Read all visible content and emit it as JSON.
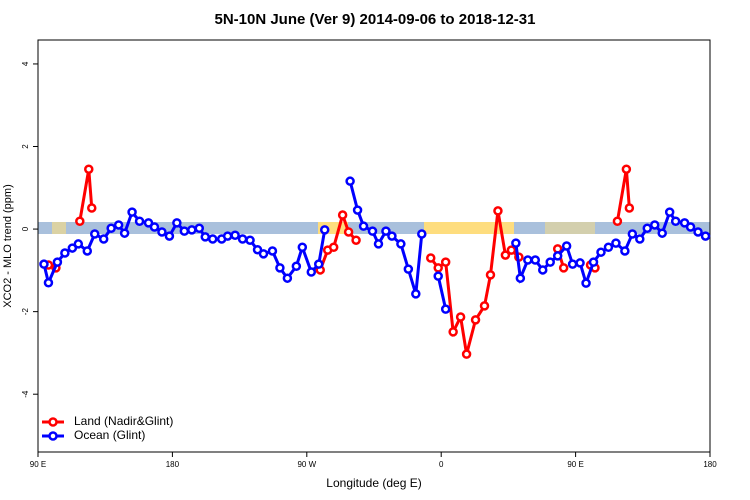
{
  "chart_data": {
    "type": "line",
    "title": "5N-10N June (Ver 9)   2014-09-06 to 2018-12-31",
    "x_label": "Longitude (deg E)",
    "y_label": "XCO2 - MLO trend (ppm)",
    "xlim": [
      90,
      540
    ],
    "ylim": [
      -5.4,
      4.58
    ],
    "xticks": [
      {
        "value": 90,
        "label": "90 E"
      },
      180,
      {
        "value": 270,
        "label": "90 W"
      },
      {
        "value": 360,
        "label": "0"
      },
      {
        "value": 450,
        "label": "90 E"
      },
      {
        "value": 540,
        "label": "180"
      }
    ],
    "yticks": [
      -4,
      -2,
      0,
      2,
      4
    ],
    "legend": "bottom-left",
    "series": [
      {
        "name": "Land (Nadir&Glint)",
        "color": "#ff0000",
        "x": [
          97,
          102,
          null,
          118,
          124,
          126,
          null,
          279,
          284,
          288,
          294,
          298,
          303,
          null,
          353,
          358,
          363,
          368,
          373,
          377,
          383,
          389,
          393,
          398,
          403,
          407,
          412,
          null,
          438,
          442,
          null,
          460,
          463,
          null,
          478,
          484,
          486
        ],
        "values": [
          -0.87,
          -0.94,
          null,
          0.19,
          1.45,
          0.51,
          null,
          -0.99,
          -0.51,
          -0.44,
          0.34,
          -0.07,
          -0.27,
          null,
          -0.7,
          -0.94,
          -0.8,
          -2.49,
          -2.13,
          -3.03,
          -2.2,
          -1.86,
          -1.11,
          0.44,
          -0.63,
          -0.51,
          -0.68,
          null,
          -0.48,
          -0.94,
          null,
          -0.87,
          -0.94,
          null,
          0.19,
          1.45,
          0.51
        ]
      },
      {
        "name": "Ocean (Glint)",
        "color": "#0000ff",
        "x": [
          94,
          97,
          103,
          108,
          113,
          117,
          123,
          128,
          134,
          139,
          144,
          148,
          153,
          158,
          164,
          168,
          173,
          178,
          183,
          188,
          193,
          198,
          202,
          207,
          213,
          217,
          222,
          227,
          232,
          237,
          241,
          247,
          252,
          257,
          263,
          267,
          273,
          278,
          282,
          null,
          299,
          304,
          308,
          314,
          318,
          323,
          327,
          333,
          338,
          343,
          347,
          null,
          358,
          363,
          null,
          410,
          413,
          418,
          423,
          428,
          433,
          438,
          444,
          448,
          453,
          457,
          462,
          467,
          472,
          477,
          483,
          488,
          493,
          498,
          503,
          508,
          513,
          517,
          523,
          527,
          532,
          537
        ],
        "values": [
          -0.85,
          -1.3,
          -0.8,
          -0.58,
          -0.46,
          -0.36,
          -0.53,
          -0.12,
          -0.24,
          0.02,
          0.1,
          -0.1,
          0.41,
          0.19,
          0.15,
          0.05,
          -0.07,
          -0.17,
          0.15,
          -0.05,
          -0.02,
          0.02,
          -0.19,
          -0.24,
          -0.24,
          -0.17,
          -0.15,
          -0.24,
          -0.27,
          -0.5,
          -0.6,
          -0.53,
          -0.94,
          -1.19,
          -0.9,
          -0.44,
          -1.04,
          -0.85,
          -0.02,
          null,
          1.16,
          0.46,
          0.07,
          -0.05,
          -0.36,
          -0.05,
          -0.17,
          -0.36,
          -0.97,
          -1.57,
          -0.12,
          null,
          -1.14,
          -1.94,
          null,
          -0.34,
          -1.19,
          -0.75,
          -0.75,
          -0.99,
          -0.8,
          -0.65,
          -0.41,
          -0.85,
          -0.82,
          -1.31,
          -0.8,
          -0.56,
          -0.44,
          -0.34,
          -0.53,
          -0.12,
          -0.24,
          0.02,
          0.1,
          -0.1,
          0.41,
          0.19,
          0.15,
          0.05,
          -0.07,
          -0.17
        ]
      }
    ]
  }
}
